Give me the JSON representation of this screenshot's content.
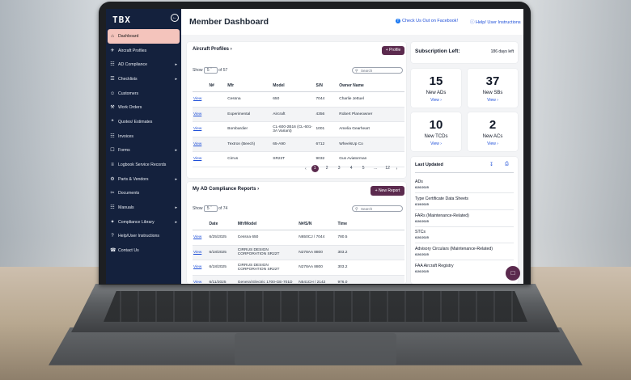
{
  "app": {
    "logo": "TBX",
    "page_title": "Member Dashboard"
  },
  "header": {
    "facebook_link": "Check Us Out on Facebook!",
    "help_link": "Help/ User Instructions"
  },
  "sidebar": {
    "items": [
      {
        "label": "Dashboard",
        "icon": "home-icon",
        "active": true,
        "caret": false
      },
      {
        "label": "Aircraft Profiles",
        "icon": "plane-icon",
        "caret": false
      },
      {
        "label": "AD Compliance",
        "icon": "doc-icon",
        "caret": true
      },
      {
        "label": "Checklists",
        "icon": "list-icon",
        "caret": true
      },
      {
        "label": "Customers",
        "icon": "users-icon",
        "caret": false
      },
      {
        "label": "Work Orders",
        "icon": "wrench-icon",
        "caret": false
      },
      {
        "label": "Quotes/ Estimates",
        "icon": "quote-icon",
        "caret": false
      },
      {
        "label": "Invoices",
        "icon": "invoice-icon",
        "caret": false
      },
      {
        "label": "Forms",
        "icon": "form-icon",
        "caret": true
      },
      {
        "label": "Logbook Service Records",
        "icon": "book-icon",
        "caret": false
      },
      {
        "label": "Parts & Vendors",
        "icon": "parts-icon",
        "caret": true
      },
      {
        "label": "Documents",
        "icon": "paperclip-icon",
        "caret": false
      },
      {
        "label": "Manuals",
        "icon": "manual-icon",
        "caret": true
      },
      {
        "label": "Compliance Library",
        "icon": "library-icon",
        "caret": true
      },
      {
        "label": "Help/User Instructions",
        "icon": "help-icon",
        "caret": false
      },
      {
        "label": "Contact Us",
        "icon": "phone-icon",
        "caret": false
      }
    ]
  },
  "aircraft": {
    "title": "Aircraft Profiles",
    "profile_button": "+ Profile",
    "show_label": "Show",
    "show_value": "5",
    "of_label": "of 57",
    "search_placeholder": "Search",
    "columns": [
      "",
      "N#",
      "Mfr",
      "Model",
      "S/N",
      "Owner Name"
    ],
    "rows": [
      [
        "View",
        "",
        "Cessna",
        "650",
        "7044",
        "Charlie Jettuel"
      ],
      [
        "View",
        "",
        "Experimental",
        "Aircraft",
        "4356",
        "Robert Planeowner"
      ],
      [
        "View",
        "",
        "Bombardier",
        "CL-600-2B16 (CL-601-3A Variant)",
        "1001",
        "Amelia Gearheart"
      ],
      [
        "View",
        "",
        "Textron (Beech)",
        "65-A90",
        "6712",
        "WheelsUp Co"
      ],
      [
        "View",
        "",
        "Cirrus",
        "SR22T",
        "9032",
        "Gus Aviatorman"
      ]
    ],
    "pages": [
      "1",
      "2",
      "3",
      "4",
      "5",
      "...",
      "12"
    ]
  },
  "reports": {
    "title": "My AD Compliance Reports",
    "new_button": "+ New Report",
    "show_label": "Show",
    "show_value": "5",
    "of_label": "of 74",
    "search_placeholder": "Search",
    "columns": [
      "",
      "Date",
      "Mfr/Model",
      "N#/S/N",
      "Time"
    ],
    "rows": [
      [
        "View",
        "6/25/2025",
        "Cessna 650",
        "N650CJ / 7044",
        "780.5"
      ],
      [
        "View",
        "6/18/2025",
        "CIRRUS DESIGN CORPORATION SR22T",
        "N278AA 8800",
        "303.2"
      ],
      [
        "View",
        "6/18/2025",
        "CIRRUS DESIGN CORPORATION SR22T",
        "N278AA 8800",
        "303.2"
      ],
      [
        "View",
        "6/11/2025",
        "General Electric 1700-GE-701D",
        "N541CH / 2142",
        "976.0"
      ]
    ]
  },
  "subscription": {
    "label": "Subscription Left:",
    "value": "186 days left"
  },
  "stats": [
    {
      "num": "15",
      "label": "New ADs",
      "view": "View"
    },
    {
      "num": "37",
      "label": "New SBs",
      "view": "View"
    },
    {
      "num": "10",
      "label": "New TCDs",
      "view": "View"
    },
    {
      "num": "2",
      "label": "New ACs",
      "view": "View"
    }
  ],
  "last_updated": {
    "title": "Last Updated",
    "items": [
      {
        "name": "ADs",
        "date": "6/26/2025"
      },
      {
        "name": "Type Certificate Data Sheets",
        "date": "6/19/2025"
      },
      {
        "name": "FARs (Maintenance-Related)",
        "date": "6/26/2025"
      },
      {
        "name": "STCs",
        "date": "6/26/2025"
      },
      {
        "name": "Advisory Circulars (Maintenance-Related)",
        "date": "6/26/2025"
      },
      {
        "name": "FAA Aircraft Registry",
        "date": "6/26/2025"
      }
    ]
  },
  "colors": {
    "sidebar": "#14213d",
    "accent": "#5b2a4e",
    "active_nav": "#f4c4bc",
    "link": "#1d4ed8"
  }
}
